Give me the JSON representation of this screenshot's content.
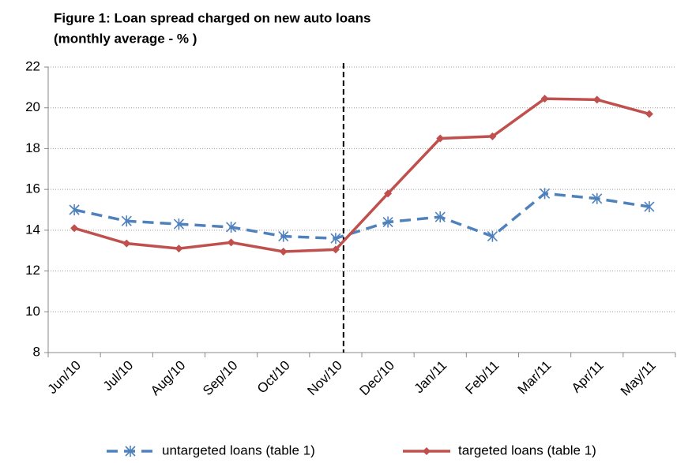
{
  "chart_data": {
    "type": "line",
    "title": [
      "Figure 1: Loan spread charged on new auto loans",
      "(monthly average - % )"
    ],
    "categories": [
      "Jun/10",
      "Jul/10",
      "Aug/10",
      "Sep/10",
      "Oct/10",
      "Nov/10",
      "Dec/10",
      "Jan/11",
      "Feb/11",
      "Mar/11",
      "Apr/11",
      "May/11"
    ],
    "series": [
      {
        "name": "untargeted loans (table 1)",
        "color": "#4f81bd",
        "dashed": true,
        "marker": "star",
        "values": [
          15.0,
          14.45,
          14.3,
          14.15,
          13.7,
          13.6,
          14.4,
          14.65,
          13.7,
          15.8,
          15.55,
          15.15
        ]
      },
      {
        "name": "targeted loans (table 1)",
        "color": "#c0504d",
        "dashed": false,
        "marker": "diamond",
        "values": [
          14.1,
          13.35,
          13.1,
          13.4,
          12.95,
          13.05,
          15.8,
          18.5,
          18.6,
          20.45,
          20.4,
          19.7
        ]
      }
    ],
    "ylim": [
      8,
      22
    ],
    "yticks": [
      8,
      10,
      12,
      14,
      16,
      18,
      20,
      22
    ],
    "grid": true
  }
}
